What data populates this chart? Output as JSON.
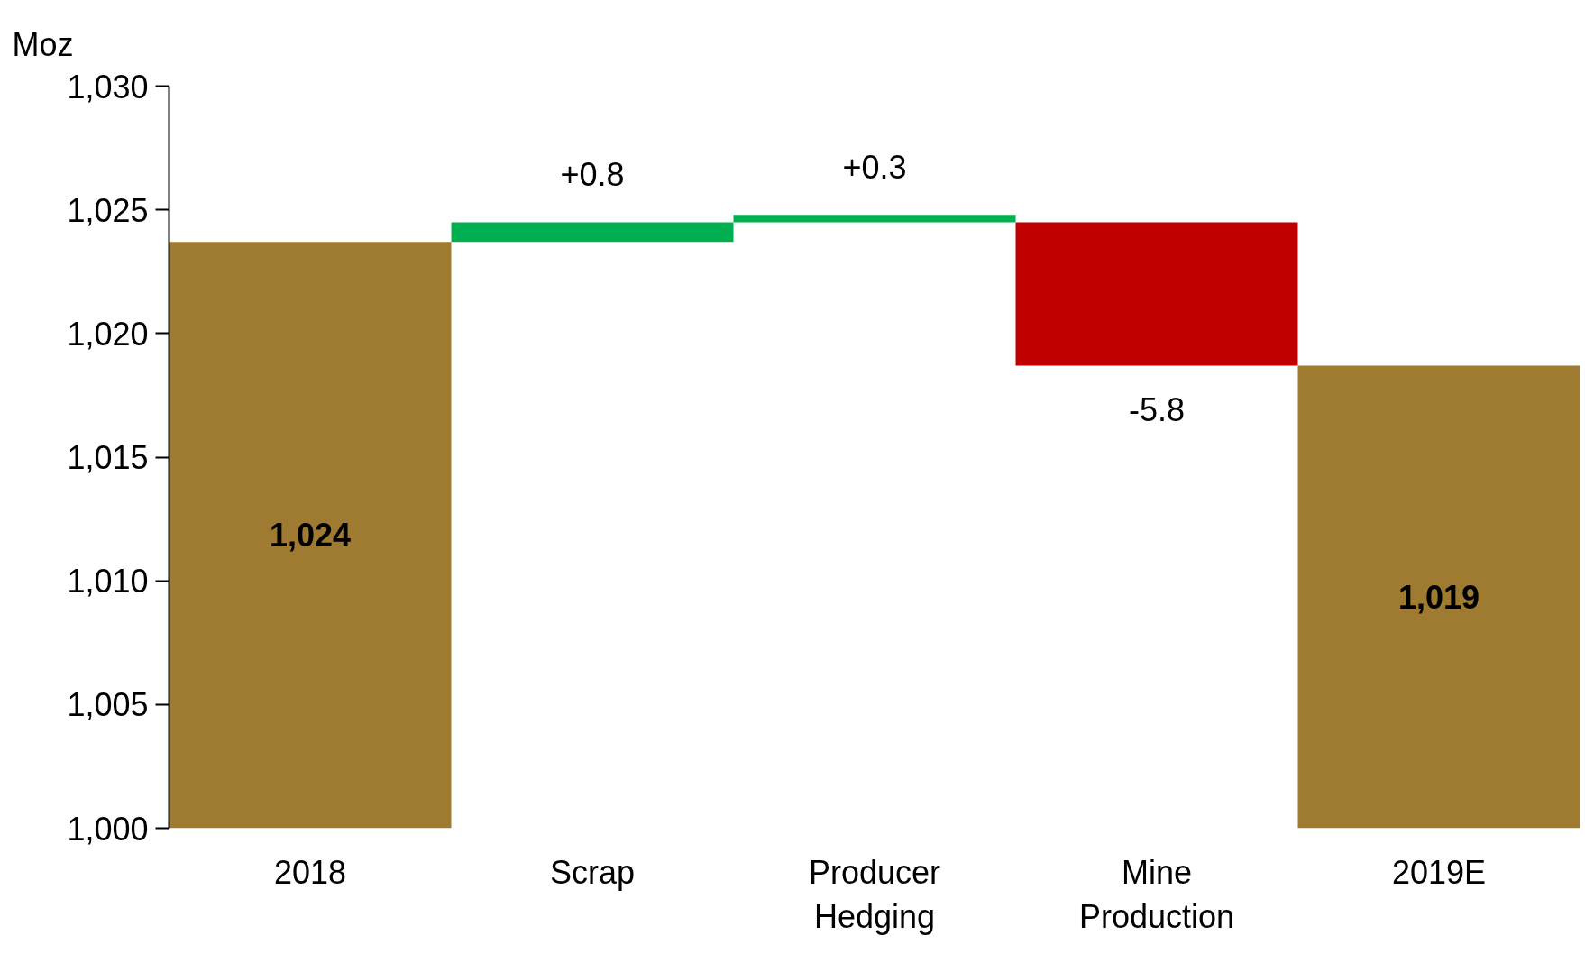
{
  "chart_data": {
    "type": "bar",
    "ylabel": "Moz",
    "categories": [
      "2018",
      "Scrap",
      "Producer\nHedging",
      "Mine\nProduction",
      "2019E"
    ],
    "values": [
      1023.7,
      0.8,
      0.3,
      -5.8,
      1018.7
    ],
    "base": [
      null,
      1023.7,
      1024.5,
      1024.5,
      null
    ],
    "colors": [
      "#9e7b31",
      "#00b050",
      "#00b050",
      "#c00000",
      "#9e7b31"
    ],
    "value_labels": [
      "1,024",
      "+0.8",
      "+0.3",
      "-5.8",
      "1,019"
    ],
    "ylim": [
      1000,
      1030
    ],
    "yticks": [
      {
        "value": 1000,
        "label": "1,000"
      },
      {
        "value": 1005,
        "label": "1,005"
      },
      {
        "value": 1010,
        "label": "1,010"
      },
      {
        "value": 1015,
        "label": "1,015"
      },
      {
        "value": 1020,
        "label": "1,020"
      },
      {
        "value": 1025,
        "label": "1,025"
      },
      {
        "value": 1030,
        "label": "1,030"
      }
    ],
    "grid": false
  }
}
